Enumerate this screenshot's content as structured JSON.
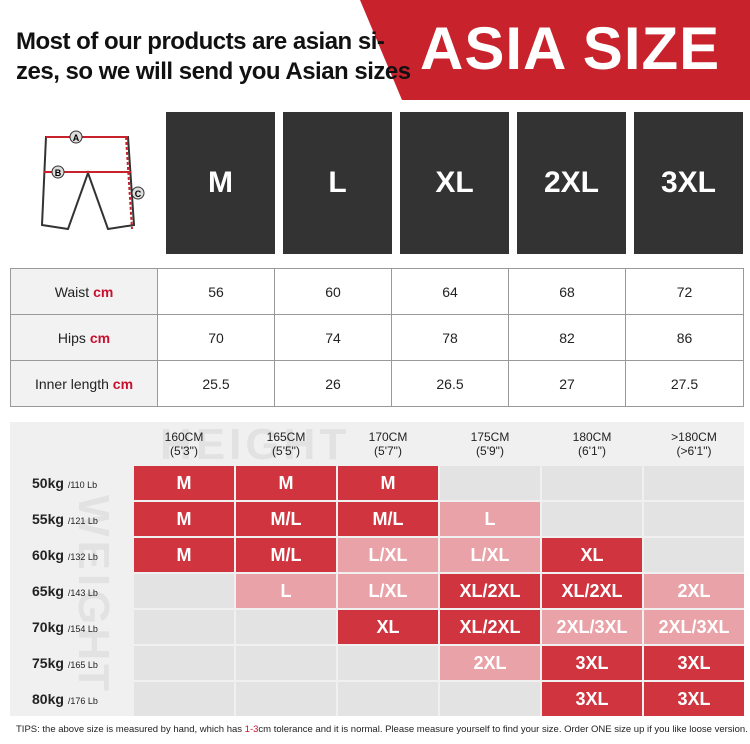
{
  "header": {
    "lines": [
      "Most of our products are asian si-",
      "zes, so we will send you Asian sizes"
    ],
    "title": "ASIA SIZE"
  },
  "diagram": {
    "labels": [
      "A",
      "B",
      "C"
    ]
  },
  "sizes": [
    "M",
    "L",
    "XL",
    "2XL",
    "3XL"
  ],
  "measurements": [
    {
      "label": "Waist",
      "unit": "cm",
      "values": [
        "56",
        "60",
        "64",
        "68",
        "72"
      ]
    },
    {
      "label": "Hips",
      "unit": "cm",
      "values": [
        "70",
        "74",
        "78",
        "82",
        "86"
      ]
    },
    {
      "label": "Inner length",
      "unit": "cm",
      "values": [
        "25.5",
        "26",
        "26.5",
        "27",
        "27.5"
      ]
    }
  ],
  "grid": {
    "watermarks": [
      "HEIGHT",
      "WEIGHT"
    ],
    "tone_colors": {
      "dark": "#d0353f",
      "light": "#e9a2a7",
      "empty": "#e3e3e3"
    },
    "heights": [
      {
        "cm": "160CM",
        "ft": "(5'3\")"
      },
      {
        "cm": "165CM",
        "ft": "(5'5\")"
      },
      {
        "cm": "170CM",
        "ft": "(5'7\")"
      },
      {
        "cm": "175CM",
        "ft": "(5'9\")"
      },
      {
        "cm": "180CM",
        "ft": "(6'1\")"
      },
      {
        "cm": ">180CM",
        "ft": "(>6'1\")"
      }
    ],
    "rows": [
      {
        "kg": "50kg",
        "lb": "/110 Lb",
        "cells": [
          {
            "size": "M",
            "tone": "dark"
          },
          {
            "size": "M",
            "tone": "dark"
          },
          {
            "size": "M",
            "tone": "dark"
          },
          null,
          null,
          null
        ]
      },
      {
        "kg": "55kg",
        "lb": "/121 Lb",
        "cells": [
          {
            "size": "M",
            "tone": "dark"
          },
          {
            "size": "M/L",
            "tone": "dark"
          },
          {
            "size": "M/L",
            "tone": "dark"
          },
          {
            "size": "L",
            "tone": "light"
          },
          null,
          null
        ]
      },
      {
        "kg": "60kg",
        "lb": "/132 Lb",
        "cells": [
          {
            "size": "M",
            "tone": "dark"
          },
          {
            "size": "M/L",
            "tone": "dark"
          },
          {
            "size": "L/XL",
            "tone": "light"
          },
          {
            "size": "L/XL",
            "tone": "light"
          },
          {
            "size": "XL",
            "tone": "dark"
          },
          null
        ]
      },
      {
        "kg": "65kg",
        "lb": "/143 Lb",
        "cells": [
          null,
          {
            "size": "L",
            "tone": "light"
          },
          {
            "size": "L/XL",
            "tone": "light"
          },
          {
            "size": "XL/2XL",
            "tone": "dark"
          },
          {
            "size": "XL/2XL",
            "tone": "dark"
          },
          {
            "size": "2XL",
            "tone": "light"
          }
        ]
      },
      {
        "kg": "70kg",
        "lb": "/154 Lb",
        "cells": [
          null,
          null,
          {
            "size": "XL",
            "tone": "dark"
          },
          {
            "size": "XL/2XL",
            "tone": "dark"
          },
          {
            "size": "2XL/3XL",
            "tone": "light"
          },
          {
            "size": "2XL/3XL",
            "tone": "light"
          }
        ]
      },
      {
        "kg": "75kg",
        "lb": "/165 Lb",
        "cells": [
          null,
          null,
          null,
          {
            "size": "2XL",
            "tone": "light"
          },
          {
            "size": "3XL",
            "tone": "dark"
          },
          {
            "size": "3XL",
            "tone": "dark"
          }
        ]
      },
      {
        "kg": "80kg",
        "lb": "/176 Lb",
        "cells": [
          null,
          null,
          null,
          null,
          {
            "size": "3XL",
            "tone": "dark"
          },
          {
            "size": "3XL",
            "tone": "dark"
          }
        ]
      }
    ]
  },
  "tips": {
    "before": "TIPS:  the above size is measured by hand, which has ",
    "highlight": "1-3",
    "after": "cm tolerance and it is normal. Please measure yourself to find your size. Order ONE size up if you like loose version."
  }
}
